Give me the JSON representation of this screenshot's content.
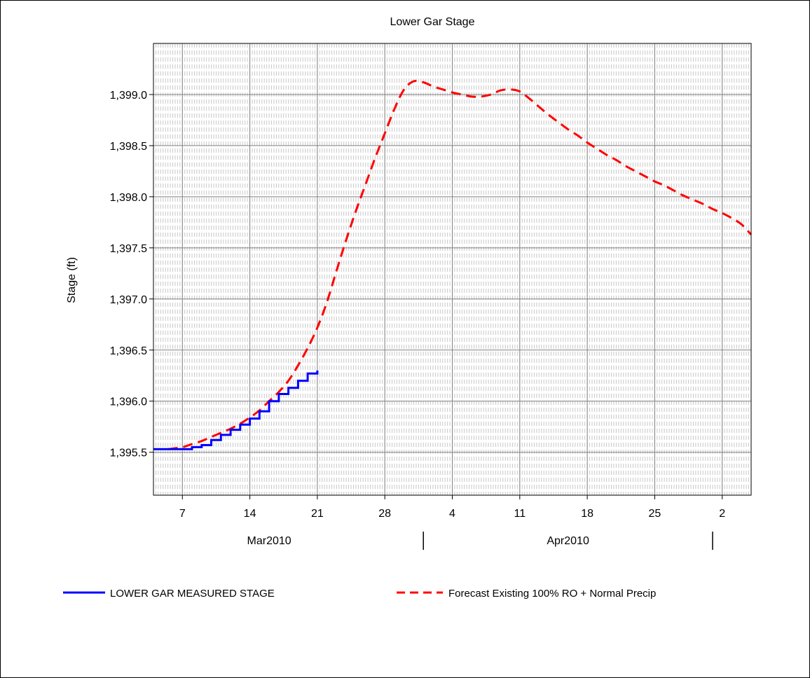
{
  "chart_data": {
    "type": "line",
    "title": "Lower Gar Stage",
    "ylabel": "Stage (ft)",
    "xlabel": "",
    "x_range": [
      "2010-03-04",
      "2010-05-05"
    ],
    "ylim": [
      1395.08,
      1399.5
    ],
    "yticks": [
      1395.5,
      1396.0,
      1396.5,
      1397.0,
      1397.5,
      1398.0,
      1398.5,
      1399.0
    ],
    "ytick_labels": [
      "1,395.5",
      "1,396.0",
      "1,396.5",
      "1,397.0",
      "1,397.5",
      "1,398.0",
      "1,398.5",
      "1,399.0"
    ],
    "xticks": [
      {
        "date": "2010-03-07",
        "label": "7"
      },
      {
        "date": "2010-03-14",
        "label": "14"
      },
      {
        "date": "2010-03-21",
        "label": "21"
      },
      {
        "date": "2010-03-28",
        "label": "28"
      },
      {
        "date": "2010-04-04",
        "label": "4"
      },
      {
        "date": "2010-04-11",
        "label": "11"
      },
      {
        "date": "2010-04-18",
        "label": "18"
      },
      {
        "date": "2010-04-25",
        "label": "25"
      },
      {
        "date": "2010-05-02",
        "label": "2"
      }
    ],
    "month_labels": [
      {
        "label": "Mar2010",
        "center": "2010-03-16"
      },
      {
        "label": "Apr2010",
        "center": "2010-04-16"
      }
    ],
    "month_separators": [
      "2010-04-01",
      "2010-05-01"
    ],
    "grid": true,
    "minor_grid": "6-hourly dashed",
    "legend_position": "bottom",
    "series": [
      {
        "name": "LOWER GAR MEASURED STAGE",
        "color": "#0000ff",
        "style": "solid-step",
        "points": [
          [
            "2010-03-04 00:00",
            1395.53
          ],
          [
            "2010-03-05 00:00",
            1395.53
          ],
          [
            "2010-03-06 00:00",
            1395.53
          ],
          [
            "2010-03-07 00:00",
            1395.53
          ],
          [
            "2010-03-08 00:00",
            1395.55
          ],
          [
            "2010-03-09 00:00",
            1395.57
          ],
          [
            "2010-03-10 00:00",
            1395.62
          ],
          [
            "2010-03-11 00:00",
            1395.67
          ],
          [
            "2010-03-12 00:00",
            1395.72
          ],
          [
            "2010-03-13 00:00",
            1395.77
          ],
          [
            "2010-03-14 00:00",
            1395.83
          ],
          [
            "2010-03-15 00:00",
            1395.9
          ],
          [
            "2010-03-16 00:00",
            1396.0
          ],
          [
            "2010-03-17 00:00",
            1396.07
          ],
          [
            "2010-03-18 00:00",
            1396.13
          ],
          [
            "2010-03-19 00:00",
            1396.2
          ],
          [
            "2010-03-20 00:00",
            1396.27
          ],
          [
            "2010-03-21 00:00",
            1396.3
          ]
        ]
      },
      {
        "name": "Forecast Existing 100% RO + Normal Precip",
        "color": "#ff0000",
        "style": "dashed",
        "points": [
          [
            "2010-03-05 12:00",
            1395.53
          ],
          [
            "2010-03-07 00:00",
            1395.55
          ],
          [
            "2010-03-08 00:00",
            1395.58
          ],
          [
            "2010-03-09 00:00",
            1395.61
          ],
          [
            "2010-03-10 00:00",
            1395.65
          ],
          [
            "2010-03-11 00:00",
            1395.69
          ],
          [
            "2010-03-12 00:00",
            1395.73
          ],
          [
            "2010-03-13 00:00",
            1395.78
          ],
          [
            "2010-03-14 00:00",
            1395.84
          ],
          [
            "2010-03-15 00:00",
            1395.91
          ],
          [
            "2010-03-16 00:00",
            1396.0
          ],
          [
            "2010-03-17 00:00",
            1396.09
          ],
          [
            "2010-03-18 00:00",
            1396.2
          ],
          [
            "2010-03-19 00:00",
            1396.35
          ],
          [
            "2010-03-20 00:00",
            1396.52
          ],
          [
            "2010-03-21 00:00",
            1396.72
          ],
          [
            "2010-03-22 00:00",
            1396.97
          ],
          [
            "2010-03-23 00:00",
            1397.28
          ],
          [
            "2010-03-24 00:00",
            1397.58
          ],
          [
            "2010-03-25 00:00",
            1397.86
          ],
          [
            "2010-03-26 00:00",
            1398.12
          ],
          [
            "2010-03-27 00:00",
            1398.38
          ],
          [
            "2010-03-28 00:00",
            1398.62
          ],
          [
            "2010-03-29 00:00",
            1398.86
          ],
          [
            "2010-03-30 00:00",
            1399.05
          ],
          [
            "2010-03-31 00:00",
            1399.13
          ],
          [
            "2010-04-01 00:00",
            1399.12
          ],
          [
            "2010-04-02 00:00",
            1399.08
          ],
          [
            "2010-04-03 00:00",
            1399.05
          ],
          [
            "2010-04-04 00:00",
            1399.02
          ],
          [
            "2010-04-05 00:00",
            1399.0
          ],
          [
            "2010-04-06 00:00",
            1398.98
          ],
          [
            "2010-04-07 00:00",
            1398.98
          ],
          [
            "2010-04-08 00:00",
            1399.0
          ],
          [
            "2010-04-09 00:00",
            1399.04
          ],
          [
            "2010-04-10 00:00",
            1399.05
          ],
          [
            "2010-04-11 00:00",
            1399.03
          ],
          [
            "2010-04-12 00:00",
            1398.96
          ],
          [
            "2010-04-13 00:00",
            1398.88
          ],
          [
            "2010-04-14 00:00",
            1398.8
          ],
          [
            "2010-04-15 00:00",
            1398.73
          ],
          [
            "2010-04-16 00:00",
            1398.66
          ],
          [
            "2010-04-17 00:00",
            1398.6
          ],
          [
            "2010-04-18 00:00",
            1398.53
          ],
          [
            "2010-04-19 00:00",
            1398.47
          ],
          [
            "2010-04-20 00:00",
            1398.41
          ],
          [
            "2010-04-21 00:00",
            1398.36
          ],
          [
            "2010-04-22 00:00",
            1398.3
          ],
          [
            "2010-04-23 00:00",
            1398.25
          ],
          [
            "2010-04-24 00:00",
            1398.2
          ],
          [
            "2010-04-25 00:00",
            1398.15
          ],
          [
            "2010-04-26 00:00",
            1398.11
          ],
          [
            "2010-04-27 00:00",
            1398.06
          ],
          [
            "2010-04-28 00:00",
            1398.01
          ],
          [
            "2010-04-29 00:00",
            1397.97
          ],
          [
            "2010-04-30 00:00",
            1397.93
          ],
          [
            "2010-05-01 00:00",
            1397.88
          ],
          [
            "2010-05-02 00:00",
            1397.84
          ],
          [
            "2010-05-03 00:00",
            1397.79
          ],
          [
            "2010-05-04 00:00",
            1397.73
          ],
          [
            "2010-05-05 00:00",
            1397.63
          ]
        ]
      }
    ]
  }
}
